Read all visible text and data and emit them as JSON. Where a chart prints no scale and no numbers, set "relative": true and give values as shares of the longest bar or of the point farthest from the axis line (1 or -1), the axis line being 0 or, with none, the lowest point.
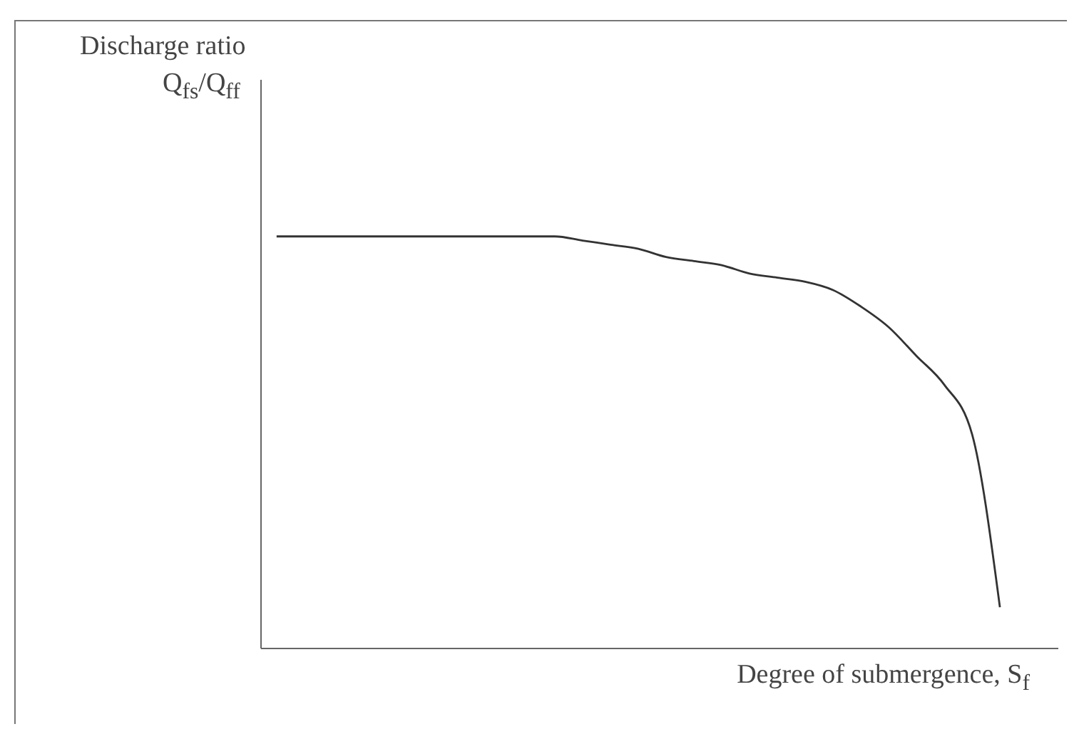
{
  "chart_data": {
    "type": "line",
    "relative": true,
    "ylabel": "Discharge ratio\nQ$_{fs}$/Q$_{ff}$",
    "xlabel": "Degree of submergence, S$_{f}$",
    "categories": [
      null,
      null,
      null,
      null,
      null,
      null,
      null,
      null,
      null,
      null,
      null,
      null,
      null,
      null,
      null,
      null,
      null,
      null,
      null,
      null,
      null,
      null,
      null,
      null,
      null,
      null,
      null
    ],
    "series": [
      {
        "color": "#333333",
        "values": [
          1,
          1,
          1,
          1,
          1,
          1,
          1,
          1,
          1,
          1,
          1,
          0.99,
          0.98,
          0.97,
          0.95,
          0.94,
          0.93,
          0.91,
          0.9,
          0.89,
          0.87,
          0.83,
          0.78,
          0.71,
          0.64,
          0.52,
          0.1
        ]
      }
    ],
    "marker": "none",
    "line_style": "solid",
    "grid": false,
    "legend": false
  }
}
